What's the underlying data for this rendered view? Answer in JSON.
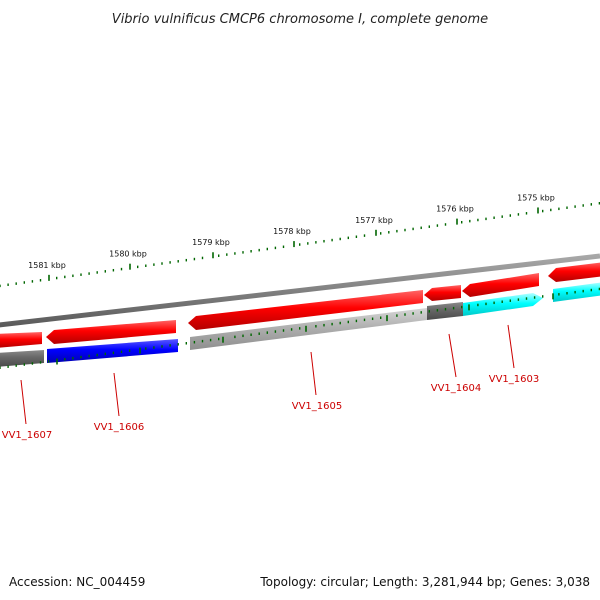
{
  "title": "Vibrio vulnificus CMCP6 chromosome I, complete genome",
  "footer": {
    "accession": "Accession: NC_004459",
    "summary": "Topology: circular; Length: 3,281,944 bp; Genes: 3,038"
  },
  "ruler": {
    "labels": [
      "1575 kbp",
      "1576 kbp",
      "1577 kbp",
      "1578 kbp",
      "1579 kbp",
      "1580 kbp",
      "1581 kbp"
    ]
  },
  "genes": [
    {
      "name": "VV1_1603",
      "strand": "forward",
      "color": "#00ffff"
    },
    {
      "name": "VV1_1604",
      "strand": "forward",
      "color": "#666666"
    },
    {
      "name": "VV1_1605",
      "strand": "forward",
      "color": "#b0b0b0"
    },
    {
      "name": "VV1_1606",
      "strand": "forward",
      "color": "#0000ff"
    },
    {
      "name": "VV1_1607",
      "strand": "forward",
      "color": "#666666"
    }
  ],
  "colors": {
    "reverse_feature": "#ff0000",
    "backbone": "#808080",
    "ruler_ticks": "#006600",
    "gene_label": "#cc0000"
  }
}
